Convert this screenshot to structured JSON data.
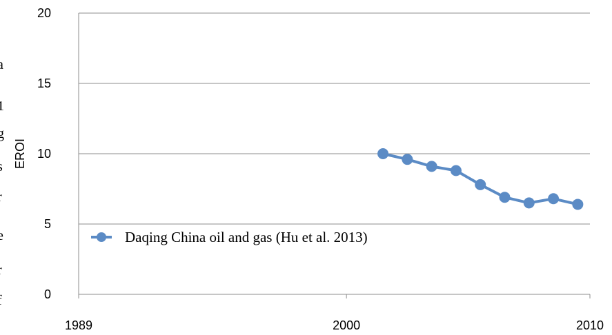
{
  "chart_data": {
    "type": "line",
    "title": "",
    "xlabel": "",
    "ylabel": "EROI",
    "xlim": [
      1989,
      2010
    ],
    "ylim": [
      0,
      20
    ],
    "x_ticks": [
      "1989",
      "2000",
      "2010"
    ],
    "y_ticks": [
      "0",
      "5",
      "10",
      "15",
      "20"
    ],
    "grid": "horizontal",
    "legend": "inside-lower-left",
    "series": [
      {
        "name": "Daqing China oil and gas (Hu et al. 2013)",
        "color": "#5B8BC5",
        "x": [
          2001.5,
          2002.5,
          2003.5,
          2004.5,
          2005.5,
          2006.5,
          2007.5,
          2008.5,
          2009.5
        ],
        "y": [
          10.0,
          9.6,
          9.1,
          8.8,
          7.8,
          6.9,
          6.5,
          6.8,
          6.4
        ]
      }
    ]
  }
}
